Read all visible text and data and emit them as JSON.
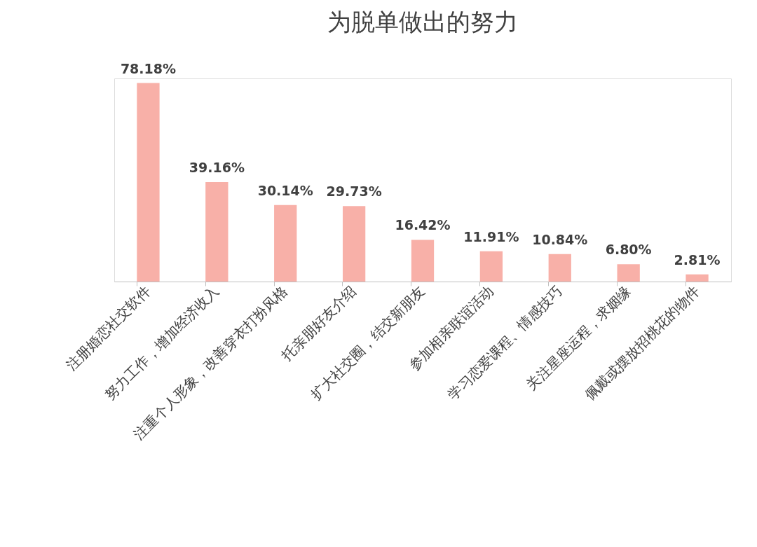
{
  "chart_data": {
    "type": "bar",
    "title": "为脱单做出的努力",
    "categories": [
      "注册婚恋社交软件",
      "努力工作，增加经济收入",
      "注重个人形象，改善穿衣打扮风格",
      "托亲朋好友介绍",
      "扩大社交圈，结交新朋友",
      "参加相亲联谊活动",
      "学习恋爱课程、情感技巧",
      "关注星座运程，求姻缘",
      "佩戴或摆放招桃花的物件"
    ],
    "values": [
      78.18,
      39.16,
      30.14,
      29.73,
      16.42,
      11.91,
      10.84,
      6.8,
      2.81
    ],
    "value_labels": [
      "78.18%",
      "39.16%",
      "30.14%",
      "29.73%",
      "16.42%",
      "11.91%",
      "10.84%",
      "6.80%",
      "2.81%"
    ],
    "color": "#f8b0a8",
    "grid": false
  }
}
